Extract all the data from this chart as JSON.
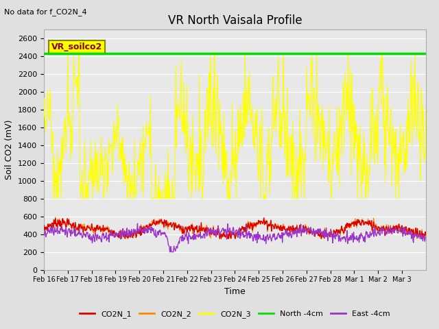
{
  "title": "VR North Vaisala Profile",
  "xlabel": "Time",
  "ylabel": "Soil CO2 (mV)",
  "no_data_text": "No data for f_CO2N_4",
  "annotation_text": "VR_soilco2",
  "ylim": [
    0,
    2700
  ],
  "yticks": [
    0,
    200,
    400,
    600,
    800,
    1000,
    1200,
    1400,
    1600,
    1800,
    2000,
    2200,
    2400,
    2600
  ],
  "north_4cm_value": 2430,
  "fig_bg_color": "#e0e0e0",
  "plot_bg_color": "#e8e8e8",
  "legend_entries": [
    "CO2N_1",
    "CO2N_2",
    "CO2N_3",
    "North -4cm",
    "East -4cm"
  ],
  "legend_colors": [
    "#dd0000",
    "#ff8800",
    "#ffff00",
    "#00dd00",
    "#9933cc"
  ],
  "tick_labels": [
    "Feb 16",
    "Feb 17",
    "Feb 18",
    "Feb 19",
    "Feb 20",
    "Feb 21",
    "Feb 22",
    "Feb 23",
    "Feb 24",
    "Feb 25",
    "Feb 26",
    "Feb 27",
    "Feb 28",
    "Mar 1",
    "Mar 2",
    "Mar 3"
  ]
}
